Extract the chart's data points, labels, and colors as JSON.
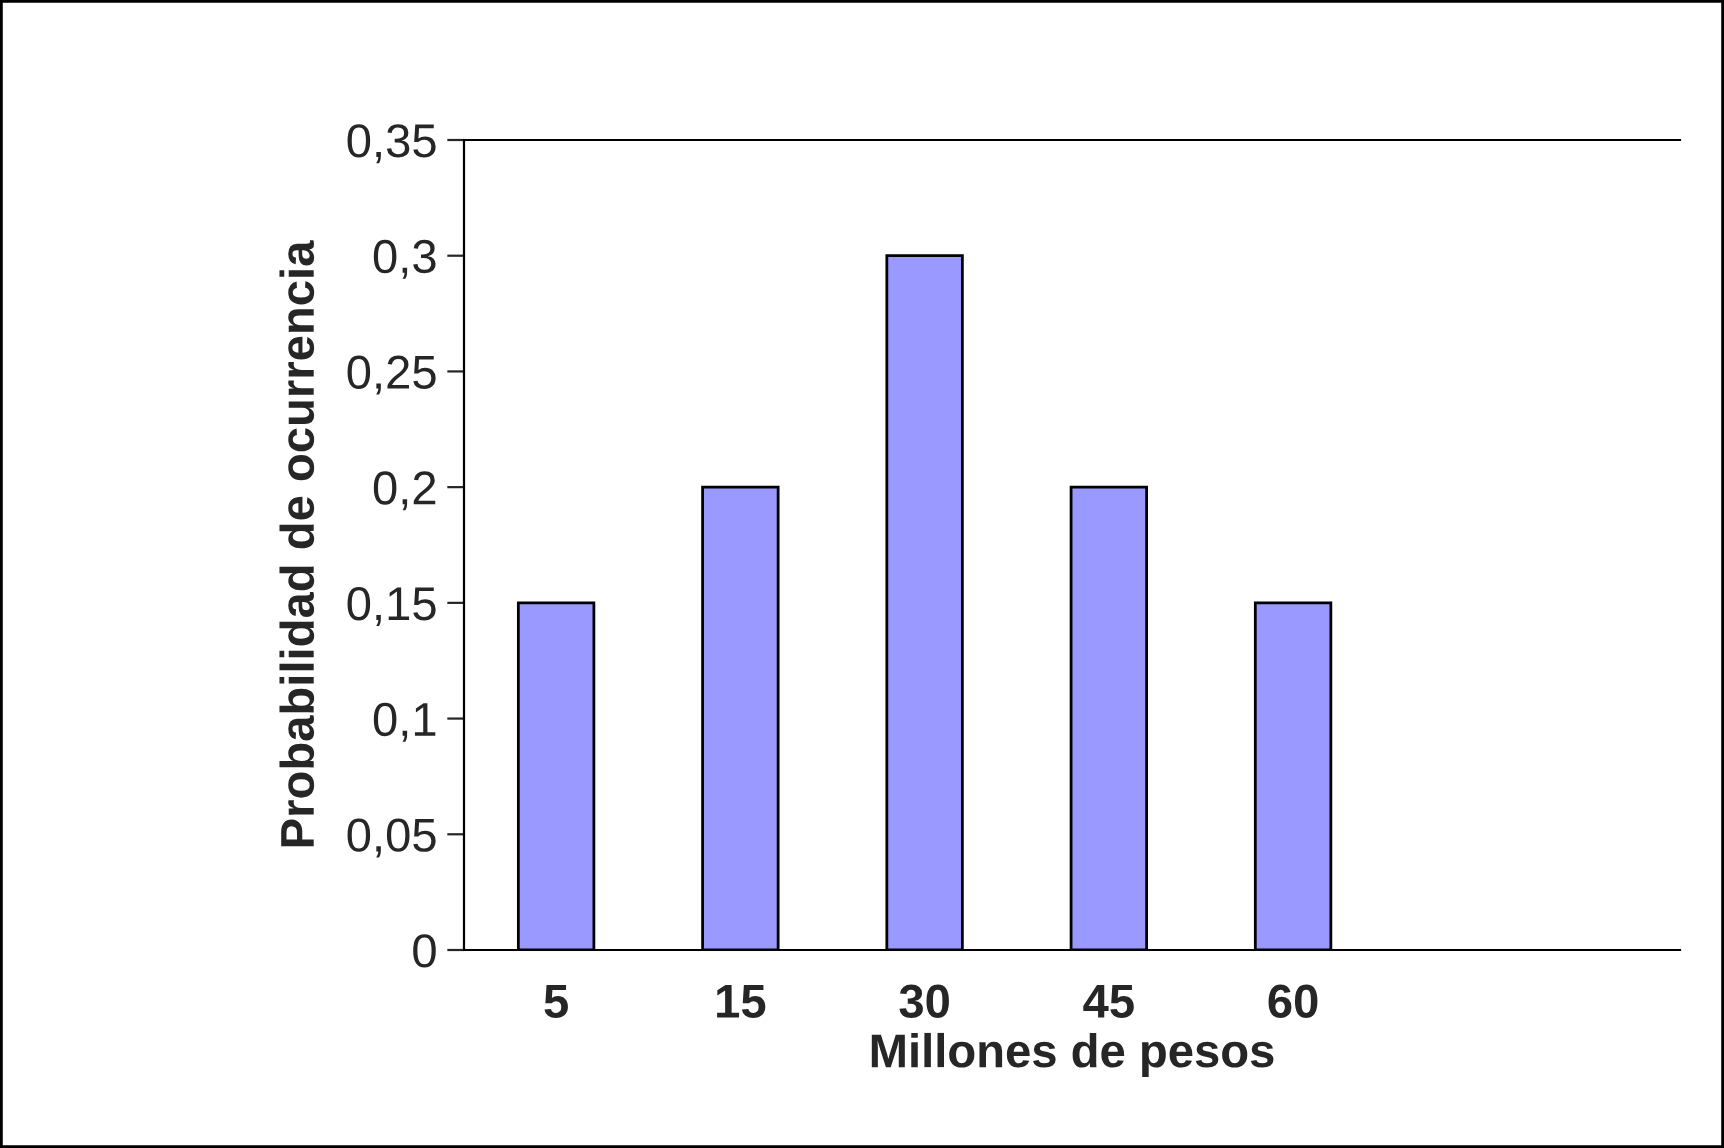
{
  "chart_data": {
    "type": "bar",
    "xlabel": "Millones de pesos",
    "ylabel": "Probabilidad de ocurrencia",
    "categories": [
      "5",
      "15",
      "30",
      "45",
      "60",
      null,
      null
    ],
    "values": [
      0.15,
      0.2,
      0.3,
      0.2,
      0.15,
      null,
      null
    ],
    "color": "#9999ff",
    "ylim": [
      0,
      0.35
    ],
    "yticks": [
      0,
      {
        "value": 0.05,
        "label": "0,05"
      },
      {
        "value": 0.1,
        "label": "0,1"
      },
      {
        "value": 0.15,
        "label": "0,15"
      },
      {
        "value": 0.2,
        "label": "0,2"
      },
      {
        "value": 0.25,
        "label": "0,25"
      },
      {
        "value": 0.3,
        "label": "0,3"
      },
      {
        "value": 0.35,
        "label": "0,35"
      }
    ],
    "grid": false,
    "legend": false
  }
}
